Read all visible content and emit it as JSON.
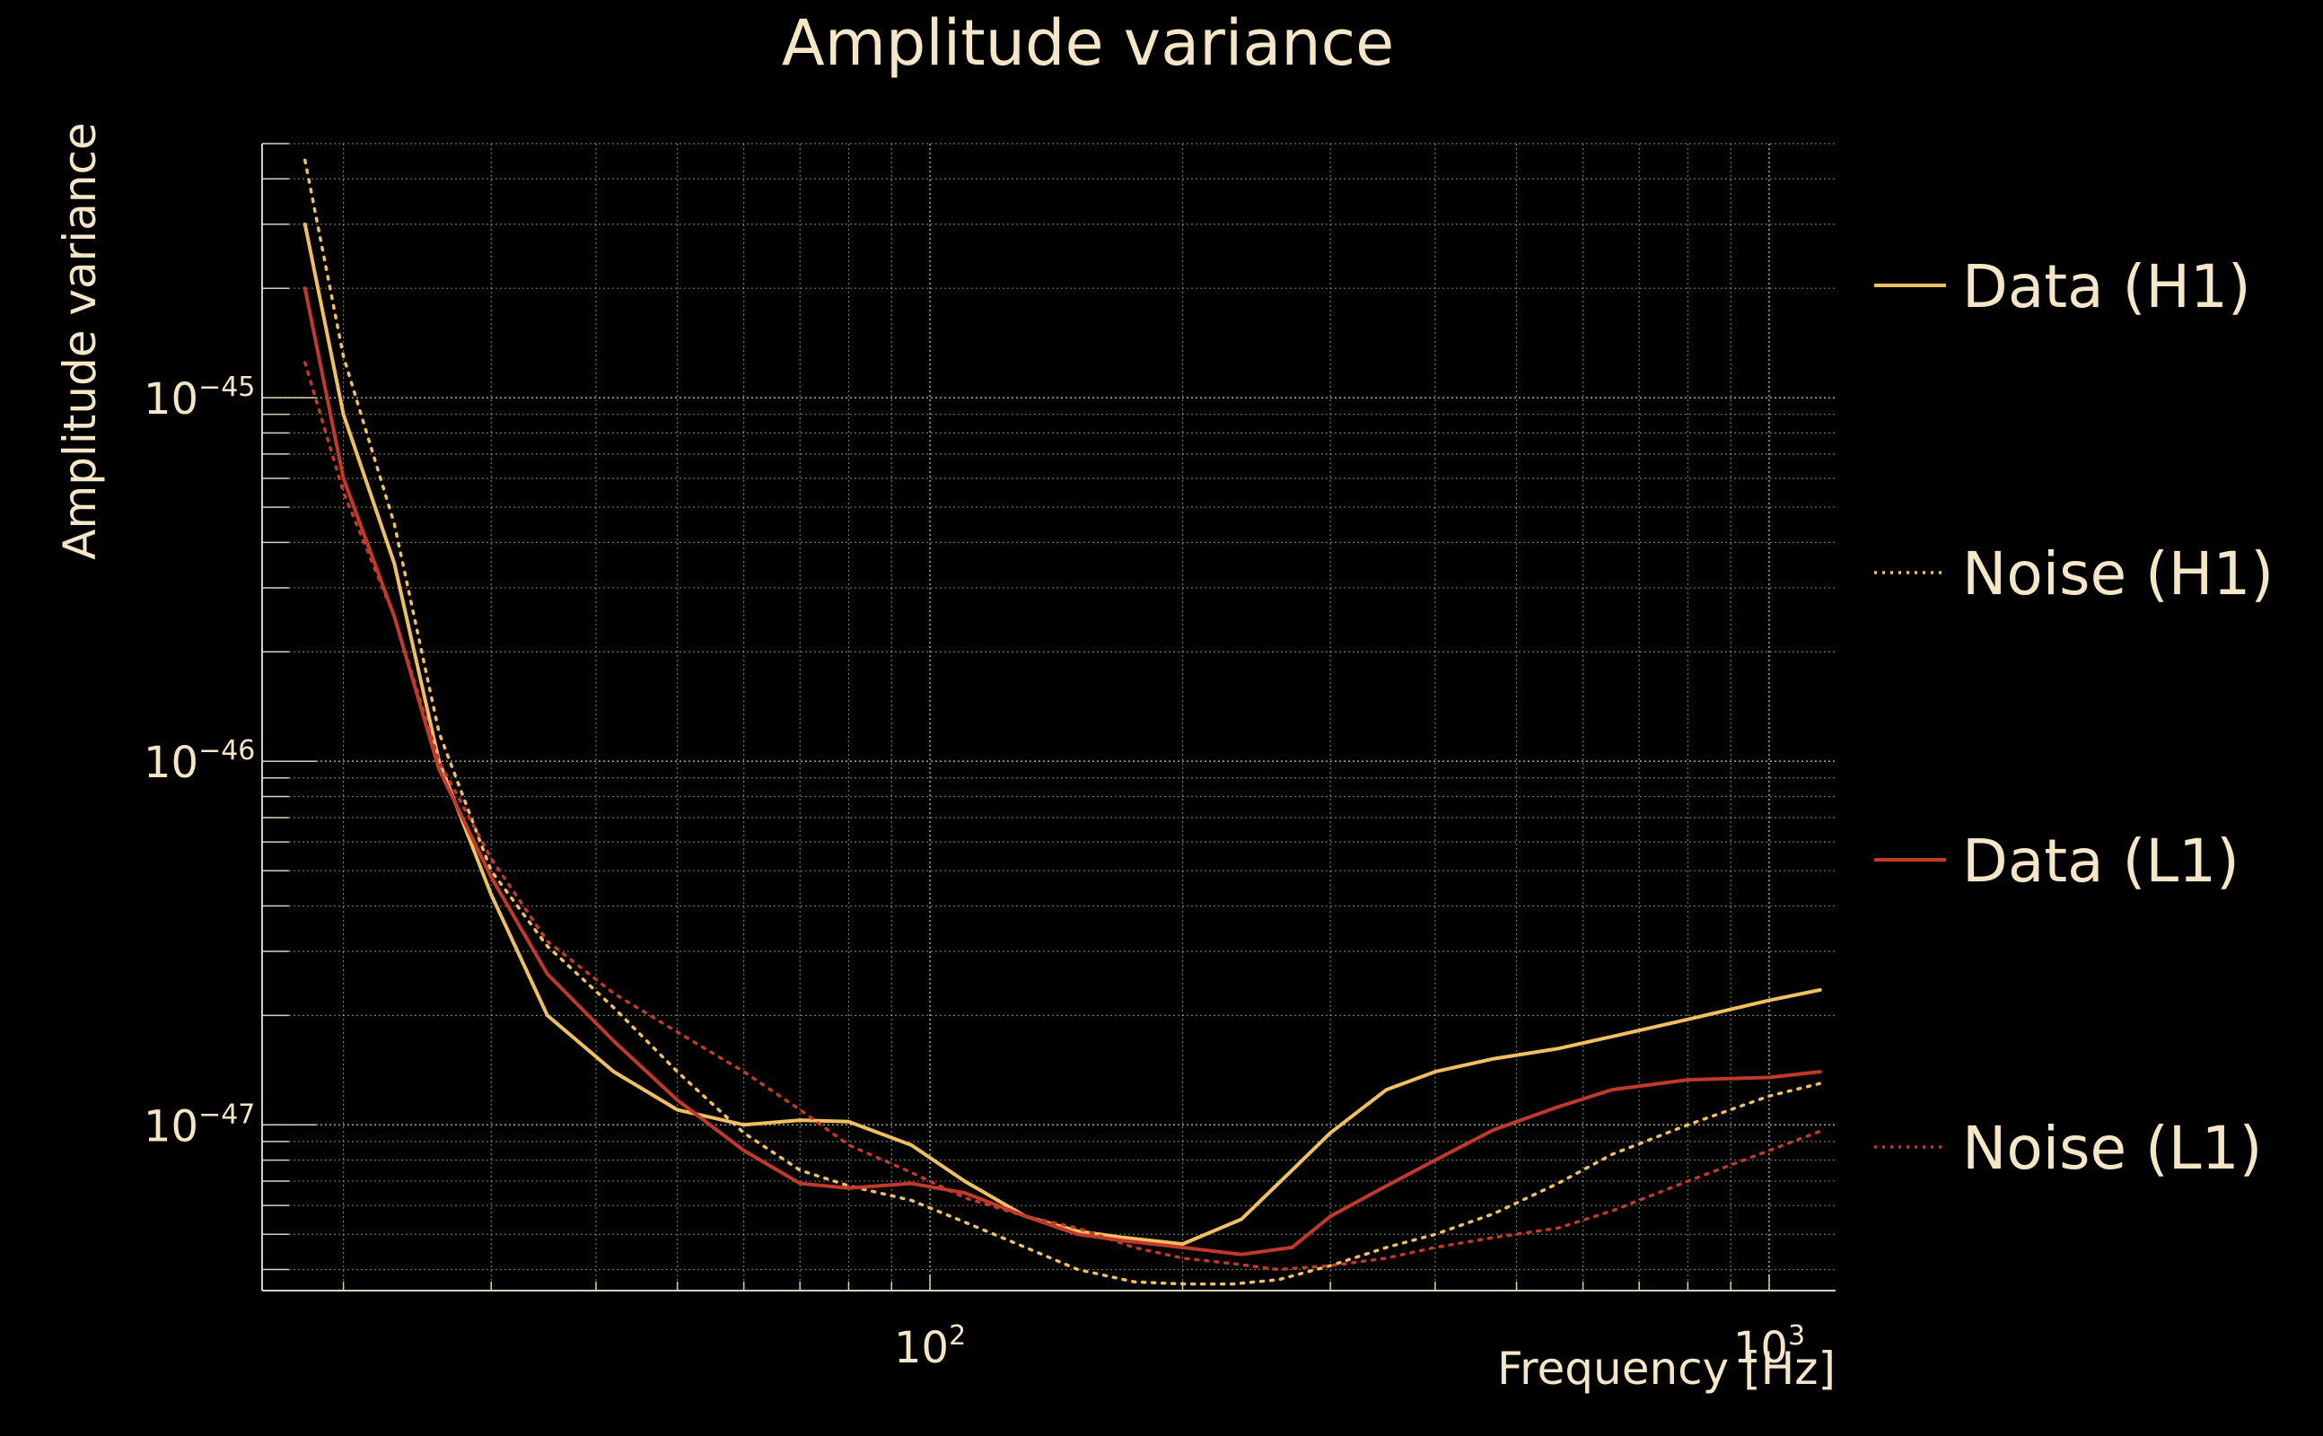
{
  "chart_data": {
    "type": "line",
    "title": "Amplitude variance",
    "xlabel": "Frequency [Hz]",
    "ylabel": "Amplitude variance",
    "xscale": "log",
    "yscale": "log",
    "xlim": [
      16,
      1200
    ],
    "ylim": [
      3.5e-48,
      5e-45
    ],
    "x_ticks": [
      {
        "value": 100,
        "base": "10",
        "exp": "2"
      },
      {
        "value": 1000,
        "base": "10",
        "exp": "3"
      }
    ],
    "y_ticks": [
      {
        "value": 1e-45,
        "base": "10",
        "exp": "−45"
      },
      {
        "value": 1e-46,
        "base": "10",
        "exp": "−46"
      },
      {
        "value": 1e-47,
        "base": "10",
        "exp": "−47"
      }
    ],
    "grid": true,
    "legend_position": "right",
    "series": [
      {
        "name": "Data (H1)",
        "color": "#f0c060",
        "style": "solid",
        "points": [
          [
            18,
            3e-45
          ],
          [
            20,
            9e-46
          ],
          [
            23,
            3.5e-46
          ],
          [
            26,
            1e-46
          ],
          [
            30,
            4.3e-47
          ],
          [
            35,
            2e-47
          ],
          [
            42,
            1.4e-47
          ],
          [
            50,
            1.1e-47
          ],
          [
            60,
            1e-47
          ],
          [
            70,
            1.03e-47
          ],
          [
            80,
            1.02e-47
          ],
          [
            95,
            8.8e-48
          ],
          [
            110,
            7e-48
          ],
          [
            130,
            5.6e-48
          ],
          [
            150,
            5.1e-48
          ],
          [
            170,
            4.9e-48
          ],
          [
            200,
            4.7e-48
          ],
          [
            235,
            5.5e-48
          ],
          [
            270,
            7.5e-48
          ],
          [
            300,
            9.5e-48
          ],
          [
            350,
            1.25e-47
          ],
          [
            400,
            1.4e-47
          ],
          [
            470,
            1.52e-47
          ],
          [
            560,
            1.62e-47
          ],
          [
            650,
            1.75e-47
          ],
          [
            800,
            1.95e-47
          ],
          [
            1000,
            2.2e-47
          ],
          [
            1150,
            2.35e-47
          ]
        ]
      },
      {
        "name": "Noise (H1)",
        "color": "#f0c060",
        "style": "dotted",
        "points": [
          [
            18,
            4.5e-45
          ],
          [
            20,
            1.3e-45
          ],
          [
            23,
            4.5e-46
          ],
          [
            26,
            1.2e-46
          ],
          [
            30,
            5e-47
          ],
          [
            35,
            3.1e-47
          ],
          [
            42,
            2.1e-47
          ],
          [
            50,
            1.4e-47
          ],
          [
            60,
            9.5e-48
          ],
          [
            70,
            7.5e-48
          ],
          [
            80,
            6.8e-48
          ],
          [
            95,
            6.2e-48
          ],
          [
            110,
            5.4e-48
          ],
          [
            130,
            4.6e-48
          ],
          [
            150,
            4e-48
          ],
          [
            175,
            3.7e-48
          ],
          [
            200,
            3.65e-48
          ],
          [
            230,
            3.65e-48
          ],
          [
            260,
            3.75e-48
          ],
          [
            300,
            4.1e-48
          ],
          [
            350,
            4.6e-48
          ],
          [
            400,
            5e-48
          ],
          [
            470,
            5.7e-48
          ],
          [
            560,
            6.9e-48
          ],
          [
            650,
            8.3e-48
          ],
          [
            800,
            1e-47
          ],
          [
            1000,
            1.2e-47
          ],
          [
            1150,
            1.3e-47
          ]
        ]
      },
      {
        "name": "Data (L1)",
        "color": "#c0392b",
        "style": "solid",
        "points": [
          [
            18,
            2e-45
          ],
          [
            20,
            6e-46
          ],
          [
            23,
            2.5e-46
          ],
          [
            26,
            9.5e-47
          ],
          [
            30,
            4.8e-47
          ],
          [
            35,
            2.6e-47
          ],
          [
            42,
            1.7e-47
          ],
          [
            50,
            1.17e-47
          ],
          [
            60,
            8.5e-48
          ],
          [
            70,
            6.9e-48
          ],
          [
            80,
            6.7e-48
          ],
          [
            95,
            6.9e-48
          ],
          [
            110,
            6.5e-48
          ],
          [
            130,
            5.6e-48
          ],
          [
            150,
            5e-48
          ],
          [
            170,
            4.8e-48
          ],
          [
            200,
            4.6e-48
          ],
          [
            235,
            4.4e-48
          ],
          [
            270,
            4.6e-48
          ],
          [
            300,
            5.6e-48
          ],
          [
            350,
            6.8e-48
          ],
          [
            400,
            8e-48
          ],
          [
            470,
            9.7e-48
          ],
          [
            560,
            1.12e-47
          ],
          [
            650,
            1.25e-47
          ],
          [
            800,
            1.33e-47
          ],
          [
            1000,
            1.35e-47
          ],
          [
            1150,
            1.4e-47
          ]
        ]
      },
      {
        "name": "Noise (L1)",
        "color": "#c0392b",
        "style": "dotted",
        "points": [
          [
            18,
            1.25e-45
          ],
          [
            20,
            5.5e-46
          ],
          [
            23,
            2.5e-46
          ],
          [
            26,
            1e-46
          ],
          [
            30,
            5.4e-47
          ],
          [
            35,
            3.2e-47
          ],
          [
            42,
            2.3e-47
          ],
          [
            50,
            1.8e-47
          ],
          [
            60,
            1.4e-47
          ],
          [
            70,
            1.1e-47
          ],
          [
            80,
            8.8e-48
          ],
          [
            95,
            7.4e-48
          ],
          [
            110,
            6.3e-48
          ],
          [
            130,
            5.6e-48
          ],
          [
            150,
            5.2e-48
          ],
          [
            175,
            4.6e-48
          ],
          [
            200,
            4.3e-48
          ],
          [
            230,
            4.15e-48
          ],
          [
            260,
            4e-48
          ],
          [
            300,
            4.1e-48
          ],
          [
            350,
            4.3e-48
          ],
          [
            400,
            4.6e-48
          ],
          [
            470,
            4.9e-48
          ],
          [
            560,
            5.2e-48
          ],
          [
            650,
            5.8e-48
          ],
          [
            800,
            7e-48
          ],
          [
            1000,
            8.5e-48
          ],
          [
            1150,
            9.6e-48
          ]
        ]
      }
    ]
  }
}
